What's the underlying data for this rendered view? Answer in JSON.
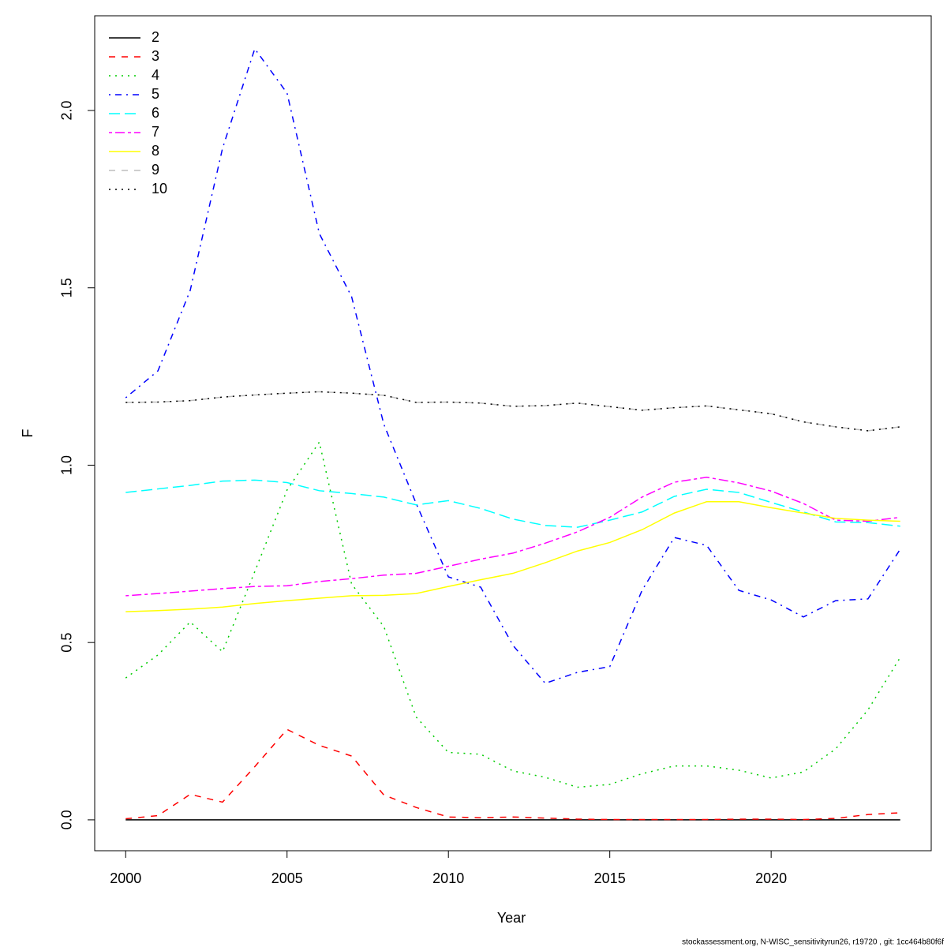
{
  "chart_data": {
    "type": "line",
    "x_label": "Year",
    "y_label": "F",
    "footer": "stockassessment.org, N-WISC_sensitivityrun26, r19720 , git: 1cc464b80f6f",
    "x": [
      2000,
      2001,
      2002,
      2003,
      2004,
      2005,
      2006,
      2007,
      2008,
      2009,
      2010,
      2011,
      2012,
      2013,
      2014,
      2015,
      2016,
      2017,
      2018,
      2019,
      2020,
      2021,
      2022,
      2023,
      2024
    ],
    "xlim": [
      1999.04,
      2024.96
    ],
    "xticks": [
      2000,
      2005,
      2010,
      2015,
      2020
    ],
    "ylim": [
      -0.087,
      2.267
    ],
    "yticks": [
      {
        "value": 0,
        "label": "0.0"
      },
      {
        "value": 0.5,
        "label": "0.5"
      },
      {
        "value": 1,
        "label": "1.0"
      },
      {
        "value": 1.5,
        "label": "1.5"
      },
      {
        "value": 2,
        "label": "2.0"
      }
    ],
    "legend": "topleft",
    "series": [
      {
        "name": "2",
        "color": "#000000",
        "dash": "solid",
        "values": [
          0,
          0,
          0,
          0,
          0,
          0,
          0,
          0,
          0,
          0,
          0,
          0,
          0,
          0,
          0,
          0,
          0,
          0,
          0,
          0,
          0,
          0,
          0,
          0,
          0
        ]
      },
      {
        "name": "3",
        "color": "#ff0000",
        "dash": "dashed",
        "values": [
          0.003,
          0.012,
          0.072,
          0.05,
          0.15,
          0.255,
          0.21,
          0.18,
          0.07,
          0.035,
          0.008,
          0.006,
          0.008,
          0.005,
          0.002,
          0.001,
          0.001,
          0.001,
          0.001,
          0.002,
          0.002,
          0.001,
          0.004,
          0.015,
          0.02
        ]
      },
      {
        "name": "4",
        "color": "#00cd00",
        "dash": "dotted",
        "values": [
          0.4,
          0.465,
          0.558,
          0.474,
          0.7,
          0.93,
          1.065,
          0.665,
          0.545,
          0.29,
          0.19,
          0.185,
          0.138,
          0.12,
          0.092,
          0.1,
          0.13,
          0.152,
          0.152,
          0.14,
          0.118,
          0.135,
          0.2,
          0.31,
          0.458
        ]
      },
      {
        "name": "5",
        "color": "#0000ff",
        "dash": "dotdash",
        "values": [
          1.19,
          1.266,
          1.493,
          1.893,
          2.174,
          2.049,
          1.653,
          1.475,
          1.115,
          0.892,
          0.685,
          0.656,
          0.492,
          0.385,
          0.416,
          0.432,
          0.647,
          0.796,
          0.774,
          0.647,
          0.62,
          0.572,
          0.618,
          0.623,
          0.763
        ]
      },
      {
        "name": "6",
        "color": "#00ffff",
        "dash": "longdash",
        "values": [
          0.923,
          0.933,
          0.943,
          0.955,
          0.958,
          0.951,
          0.928,
          0.92,
          0.91,
          0.888,
          0.9,
          0.878,
          0.848,
          0.83,
          0.825,
          0.845,
          0.868,
          0.912,
          0.932,
          0.923,
          0.895,
          0.868,
          0.84,
          0.838,
          0.828
        ]
      },
      {
        "name": "7",
        "color": "#ff00ff",
        "dash": "twodash",
        "values": [
          0.632,
          0.638,
          0.645,
          0.652,
          0.658,
          0.66,
          0.672,
          0.68,
          0.69,
          0.695,
          0.715,
          0.735,
          0.752,
          0.78,
          0.812,
          0.853,
          0.91,
          0.952,
          0.966,
          0.95,
          0.927,
          0.892,
          0.845,
          0.842,
          0.853
        ]
      },
      {
        "name": "8",
        "color": "#ffff00",
        "dash": "solid",
        "values": [
          0.587,
          0.59,
          0.594,
          0.6,
          0.61,
          0.618,
          0.625,
          0.632,
          0.633,
          0.638,
          0.658,
          0.677,
          0.695,
          0.725,
          0.758,
          0.782,
          0.818,
          0.865,
          0.897,
          0.897,
          0.88,
          0.865,
          0.85,
          0.845,
          0.842
        ]
      },
      {
        "name": "9",
        "color": "#bebebe",
        "dash": "dashed",
        "values": [
          1.177,
          1.178,
          1.182,
          1.192,
          1.198,
          1.203,
          1.207,
          1.203,
          1.197,
          1.177,
          1.178,
          1.175,
          1.166,
          1.168,
          1.175,
          1.165,
          1.155,
          1.162,
          1.167,
          1.156,
          1.145,
          1.122,
          1.108,
          1.097,
          1.108
        ]
      },
      {
        "name": "10",
        "color": "#000000",
        "dash": "dotted",
        "values": [
          1.177,
          1.178,
          1.182,
          1.192,
          1.198,
          1.203,
          1.207,
          1.203,
          1.197,
          1.177,
          1.178,
          1.175,
          1.166,
          1.168,
          1.175,
          1.165,
          1.155,
          1.162,
          1.167,
          1.156,
          1.145,
          1.122,
          1.108,
          1.097,
          1.108
        ]
      }
    ]
  }
}
